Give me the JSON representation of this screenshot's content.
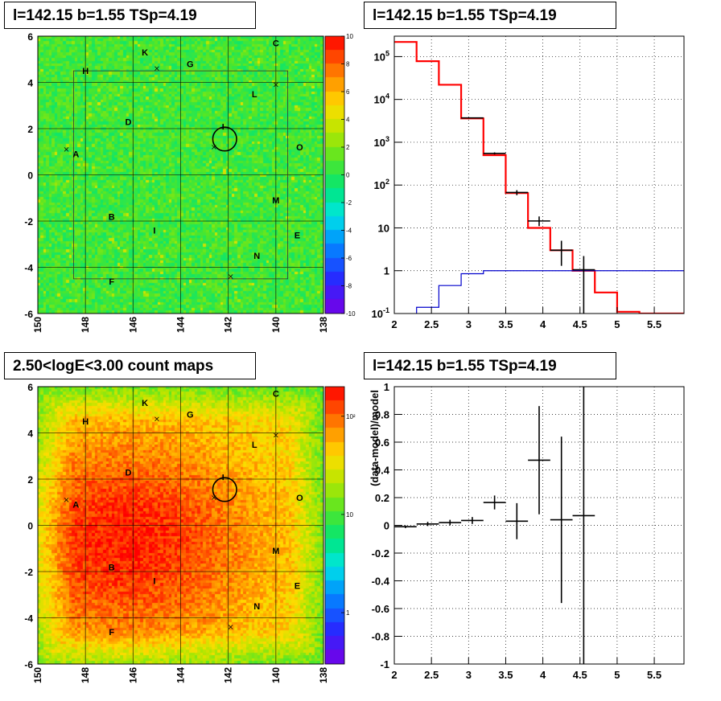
{
  "panels": {
    "top_left_title": "l=142.15 b=1.55 TSp=4.19",
    "top_right_title": "l=142.15 b=1.55 TSp=4.19",
    "bottom_left_title": "2.50<logE<3.00 count maps",
    "bottom_right_title": "l=142.15 b=1.55 TSp=4.19"
  },
  "chart_data": [
    {
      "type": "heatmap",
      "title": "l=142.15 b=1.55 TSp=4.19",
      "xticks": [
        "150",
        "148",
        "146",
        "144",
        "142",
        "140",
        "138"
      ],
      "yticks": [
        "6",
        "4",
        "2",
        "0",
        "-2",
        "-4",
        "-6"
      ],
      "xlim": [
        150,
        138
      ],
      "ylim": [
        -6,
        6
      ],
      "colorbar_ticks": [
        "10",
        "8",
        "6",
        "4",
        "2",
        "0",
        "-2",
        "-4",
        "-6",
        "-8",
        "-10"
      ],
      "colorbar_range": [
        -10,
        10
      ],
      "source_labels": [
        {
          "text": "K",
          "l": 145.5,
          "b": 5.3
        },
        {
          "text": "C",
          "l": 140,
          "b": 5.7
        },
        {
          "text": "H",
          "l": 148,
          "b": 4.5
        },
        {
          "text": "G",
          "l": 143.6,
          "b": 4.8
        },
        {
          "text": "L",
          "l": 140.9,
          "b": 3.5
        },
        {
          "text": "D",
          "l": 146.2,
          "b": 2.3
        },
        {
          "text": "A",
          "l": 148.4,
          "b": 0.9
        },
        {
          "text": "O",
          "l": 139,
          "b": 1.2
        },
        {
          "text": "M",
          "l": 140,
          "b": -1.1
        },
        {
          "text": "B",
          "l": 146.9,
          "b": -1.8
        },
        {
          "text": "I",
          "l": 145.1,
          "b": -2.4
        },
        {
          "text": "E",
          "l": 139.1,
          "b": -2.6
        },
        {
          "text": "N",
          "l": 140.8,
          "b": -3.5
        },
        {
          "text": "F",
          "l": 146.9,
          "b": -4.6
        }
      ],
      "markers": [
        {
          "l": 145,
          "b": 4.6
        },
        {
          "l": 148.8,
          "b": 1.1
        },
        {
          "l": 142.6,
          "b": 1.2
        },
        {
          "l": 140,
          "b": 3.9
        },
        {
          "l": 141.9,
          "b": -4.4
        }
      ],
      "circle": {
        "l": 142.15,
        "b": 1.55,
        "radius_deg": 0.5
      }
    },
    {
      "type": "line",
      "title": "l=142.15 b=1.55 TSp=4.19",
      "yscale": "log",
      "xlim": [
        2.0,
        5.9
      ],
      "ylim": [
        0.1,
        300000
      ],
      "xticks": [
        "2",
        "2.5",
        "3",
        "3.5",
        "4",
        "4.5",
        "5",
        "5.5"
      ],
      "yticks": [
        "10^-1",
        "1",
        "10",
        "10^2",
        "10^3",
        "10^4",
        "10^5"
      ],
      "grid": true,
      "bin_edges": [
        2.0,
        2.3,
        2.6,
        2.9,
        3.2,
        3.5,
        3.8,
        4.1,
        4.4,
        4.7,
        5.0,
        5.3,
        5.6,
        5.9
      ],
      "series": [
        {
          "color": "#ff0000",
          "values": [
            220000,
            78000,
            22000,
            3600,
            500,
            65,
            10,
            3,
            1,
            0.31,
            0.11,
            0.1,
            0.1
          ]
        },
        {
          "color": "#0000cc",
          "values": [
            0.08,
            0.14,
            0.45,
            0.85,
            1,
            1,
            1,
            1,
            1,
            1,
            1,
            1,
            1
          ]
        }
      ],
      "data_points": [
        {
          "x": 3.05,
          "y": 3700,
          "yerr": [
            3600,
            3800
          ]
        },
        {
          "x": 3.35,
          "y": 550,
          "yerr": [
            520,
            580
          ]
        },
        {
          "x": 3.65,
          "y": 67,
          "yerr": [
            58,
            76
          ]
        },
        {
          "x": 3.95,
          "y": 14.5,
          "yerr": [
            11,
            18.5
          ]
        },
        {
          "x": 4.25,
          "y": 3.0,
          "yerr": [
            1.3,
            5
          ]
        },
        {
          "x": 4.55,
          "y": 1.05,
          "yerr": [
            0.1,
            2.2
          ]
        }
      ]
    },
    {
      "type": "heatmap",
      "title": "2.50<logE<3.00 count maps",
      "xticks": [
        "150",
        "148",
        "146",
        "144",
        "142",
        "140",
        "138"
      ],
      "yticks": [
        "6",
        "4",
        "2",
        "0",
        "-2",
        "-4",
        "-6"
      ],
      "xlim": [
        150,
        138
      ],
      "ylim": [
        -6,
        6
      ],
      "colorbar_ticks": [
        "10^2",
        "10",
        "1"
      ],
      "colorbar_scale": "log",
      "colorbar_range": [
        0.3,
        200
      ]
    },
    {
      "type": "scatter",
      "title": "l=142.15 b=1.55 TSp=4.19",
      "ylabel": "(data-model)/model",
      "xlim": [
        2.0,
        5.9
      ],
      "ylim": [
        -1,
        1
      ],
      "xticks": [
        "2",
        "2.5",
        "3",
        "3.5",
        "4",
        "4.5",
        "5",
        "5.5"
      ],
      "yticks": [
        "1",
        "0.8",
        "0.6",
        "0.4",
        "0.2",
        "0",
        "-0.2",
        "-0.4",
        "-0.6",
        "-0.8",
        "-1"
      ],
      "grid": true,
      "points": [
        {
          "x": 2.15,
          "y": -0.01,
          "xerr": 0.15,
          "yerr": 0.01
        },
        {
          "x": 2.45,
          "y": 0.01,
          "xerr": 0.15,
          "yerr": 0.015
        },
        {
          "x": 2.75,
          "y": 0.02,
          "xerr": 0.15,
          "yerr": 0.02
        },
        {
          "x": 3.05,
          "y": 0.035,
          "xerr": 0.15,
          "yerr": 0.025
        },
        {
          "x": 3.35,
          "y": 0.165,
          "xerr": 0.15,
          "yerr": 0.05
        },
        {
          "x": 3.65,
          "y": 0.03,
          "xerr": 0.15,
          "yerr": 0.13
        },
        {
          "x": 3.95,
          "y": 0.47,
          "xerr": 0.15,
          "yerr": 0.39
        },
        {
          "x": 4.25,
          "y": 0.04,
          "xerr": 0.15,
          "yerr": 0.6
        },
        {
          "x": 4.55,
          "y": 0.07,
          "xerr": 0.15,
          "yerr": 1.3
        }
      ]
    }
  ]
}
